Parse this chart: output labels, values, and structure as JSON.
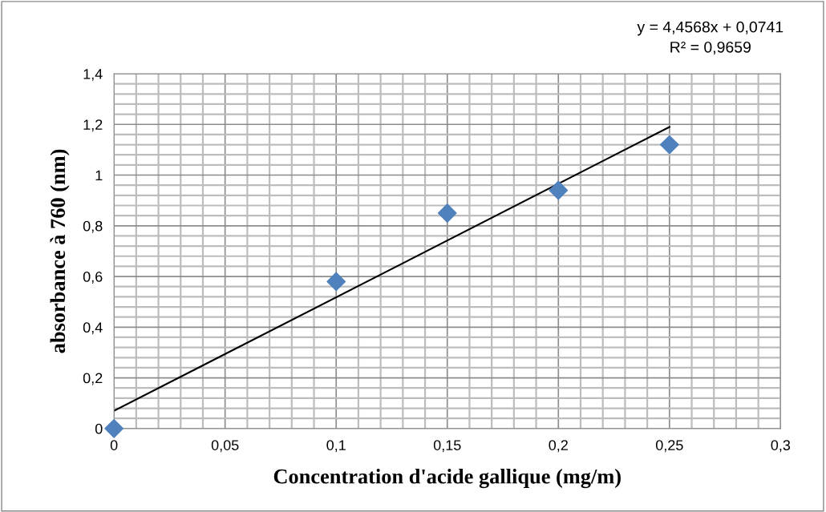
{
  "chart_data": {
    "type": "scatter",
    "xlabel": "Concentration d'acide gallique (mg/m)",
    "ylabel": "absorbance à 760 (nm)",
    "annotations": [
      "y = 4,4568x + 0,0741\nR² = 0,9659"
    ],
    "x": [
      0,
      0.1,
      0.15,
      0.2,
      0.25
    ],
    "series": [
      {
        "color": "#4f81bd",
        "marker": "diamond",
        "values": [
          0,
          0.58,
          0.85,
          0.94,
          1.12
        ]
      },
      {
        "type": "line",
        "color": "#000000",
        "marker": "none",
        "line_style": "solid",
        "x": [
          0,
          0.25
        ],
        "values": [
          0.07,
          1.19
        ]
      }
    ],
    "xlim": [
      0,
      0.3
    ],
    "ylim": [
      0,
      1.4
    ],
    "xticks": [
      0,
      {
        "value": 0.01,
        "label": null
      },
      {
        "value": 0.02,
        "label": null
      },
      {
        "value": 0.03,
        "label": null
      },
      {
        "value": 0.04,
        "label": null
      },
      {
        "value": 0.05,
        "label": "0,05"
      },
      {
        "value": 0.06,
        "label": null
      },
      {
        "value": 0.07,
        "label": null
      },
      {
        "value": 0.08,
        "label": null
      },
      {
        "value": 0.09,
        "label": null
      },
      {
        "value": 0.1,
        "label": "0,1"
      },
      {
        "value": 0.11,
        "label": null
      },
      {
        "value": 0.12,
        "label": null
      },
      {
        "value": 0.13,
        "label": null
      },
      {
        "value": 0.14,
        "label": null
      },
      {
        "value": 0.15,
        "label": "0,15"
      },
      {
        "value": 0.16,
        "label": null
      },
      {
        "value": 0.17,
        "label": null
      },
      {
        "value": 0.18,
        "label": null
      },
      {
        "value": 0.19,
        "label": null
      },
      {
        "value": 0.2,
        "label": "0,2"
      },
      {
        "value": 0.21,
        "label": null
      },
      {
        "value": 0.22,
        "label": null
      },
      {
        "value": 0.23,
        "label": null
      },
      {
        "value": 0.24,
        "label": null
      },
      {
        "value": 0.25,
        "label": "0,25"
      },
      {
        "value": 0.26,
        "label": null
      },
      {
        "value": 0.27,
        "label": null
      },
      {
        "value": 0.28,
        "label": null
      },
      {
        "value": 0.29,
        "label": null
      },
      {
        "value": 0.3,
        "label": "0,3"
      }
    ],
    "yticks": [
      0,
      {
        "value": 0.04,
        "label": null
      },
      {
        "value": 0.08,
        "label": null
      },
      {
        "value": 0.12,
        "label": null
      },
      {
        "value": 0.16,
        "label": null
      },
      {
        "value": 0.2,
        "label": "0,2"
      },
      {
        "value": 0.24,
        "label": null
      },
      {
        "value": 0.28,
        "label": null
      },
      {
        "value": 0.32,
        "label": null
      },
      {
        "value": 0.36,
        "label": null
      },
      {
        "value": 0.4,
        "label": "0,4"
      },
      {
        "value": 0.44,
        "label": null
      },
      {
        "value": 0.48,
        "label": null
      },
      {
        "value": 0.52,
        "label": null
      },
      {
        "value": 0.56,
        "label": null
      },
      {
        "value": 0.6,
        "label": "0,6"
      },
      {
        "value": 0.64,
        "label": null
      },
      {
        "value": 0.68,
        "label": null
      },
      {
        "value": 0.72,
        "label": null
      },
      {
        "value": 0.76,
        "label": null
      },
      {
        "value": 0.8,
        "label": "0,8"
      },
      {
        "value": 0.84,
        "label": null
      },
      {
        "value": 0.88,
        "label": null
      },
      {
        "value": 0.92,
        "label": null
      },
      {
        "value": 0.96,
        "label": null
      },
      {
        "value": 1,
        "label": "1"
      },
      {
        "value": 1.04,
        "label": null
      },
      {
        "value": 1.08,
        "label": null
      },
      {
        "value": 1.12,
        "label": null
      },
      {
        "value": 1.16,
        "label": null
      },
      {
        "value": 1.2,
        "label": "1,2"
      },
      {
        "value": 1.24,
        "label": null
      },
      {
        "value": 1.28,
        "label": null
      },
      {
        "value": 1.32,
        "label": null
      },
      {
        "value": 1.36,
        "label": null
      },
      {
        "value": 1.4,
        "label": "1,4"
      }
    ],
    "grid": true
  }
}
